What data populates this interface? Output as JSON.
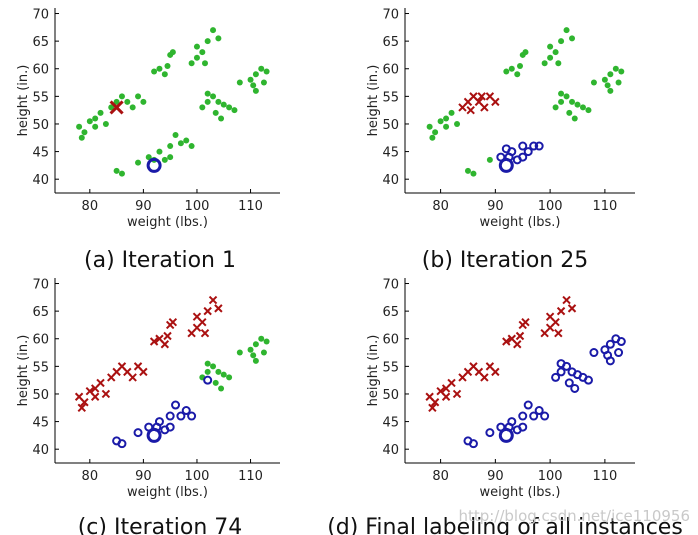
{
  "chart_data": [
    {
      "type": "scatter",
      "caption": "(a) Iteration 1",
      "xlabel": "weight (lbs.)",
      "ylabel": "height (in.)",
      "xlim": [
        73.5,
        115.5
      ],
      "ylim": [
        37.5,
        71
      ],
      "xticks": [
        80,
        90,
        100,
        110
      ],
      "yticks": [
        40,
        45,
        50,
        55,
        60,
        65,
        70
      ],
      "series": [
        {
          "marker": "dot",
          "color": "#2fb52f",
          "points": [
            [
              78,
              49.5
            ],
            [
              78.5,
              47.5
            ],
            [
              79,
              48.5
            ],
            [
              80,
              50.5
            ],
            [
              81,
              49.5
            ],
            [
              82,
              52
            ],
            [
              83,
              50
            ],
            [
              84,
              53
            ],
            [
              85,
              54
            ],
            [
              86,
              55
            ],
            [
              87,
              54
            ],
            [
              88,
              53
            ],
            [
              89,
              55
            ],
            [
              90,
              54
            ],
            [
              81,
              51
            ],
            [
              92,
              59.5
            ],
            [
              93,
              60
            ],
            [
              94,
              59
            ],
            [
              95,
              62.5
            ],
            [
              95.5,
              63
            ],
            [
              94.5,
              60.5
            ],
            [
              99,
              61
            ],
            [
              100,
              64
            ],
            [
              101,
              63
            ],
            [
              102,
              65
            ],
            [
              100,
              62
            ],
            [
              101.5,
              61
            ],
            [
              103,
              67
            ],
            [
              104,
              65.5
            ],
            [
              101,
              53
            ],
            [
              102,
              54
            ],
            [
              103,
              55
            ],
            [
              104,
              54
            ],
            [
              105,
              53.5
            ],
            [
              106,
              53
            ],
            [
              103.5,
              52
            ],
            [
              104.5,
              51
            ],
            [
              102,
              55.5
            ],
            [
              108,
              57.5
            ],
            [
              110,
              58
            ],
            [
              111,
              59
            ],
            [
              112,
              60
            ],
            [
              111,
              56
            ],
            [
              110.5,
              57
            ],
            [
              113,
              59.5
            ],
            [
              112.5,
              57.5
            ],
            [
              107,
              52.5
            ],
            [
              89,
              43
            ],
            [
              91,
              44
            ],
            [
              93,
              45
            ],
            [
              95,
              46
            ],
            [
              96,
              48
            ],
            [
              97,
              46.5
            ],
            [
              98,
              47
            ],
            [
              99,
              46
            ],
            [
              95,
              44
            ],
            [
              94,
              43.5
            ],
            [
              85,
              41.5
            ],
            [
              86,
              41
            ],
            [
              92,
              43.5
            ]
          ]
        },
        {
          "marker": "x",
          "color": "#aa1111",
          "points": [
            [
              85,
              53
            ]
          ]
        },
        {
          "marker": "ring",
          "color": "#1a1aa8",
          "points": [
            [
              92,
              42.5
            ]
          ]
        }
      ]
    },
    {
      "type": "scatter",
      "caption": "(b) Iteration 25",
      "xlabel": "weight (lbs.)",
      "ylabel": "height (in.)",
      "xlim": [
        73.5,
        115.5
      ],
      "ylim": [
        37.5,
        71
      ],
      "xticks": [
        80,
        90,
        100,
        110
      ],
      "yticks": [
        40,
        45,
        50,
        55,
        60,
        65,
        70
      ],
      "series": [
        {
          "marker": "dot",
          "color": "#2fb52f",
          "points": [
            [
              78,
              49.5
            ],
            [
              78.5,
              47.5
            ],
            [
              79,
              48.5
            ],
            [
              80,
              50.5
            ],
            [
              81,
              49.5
            ],
            [
              82,
              52
            ],
            [
              83,
              50
            ],
            [
              81,
              51
            ],
            [
              92,
              59.5
            ],
            [
              93,
              60
            ],
            [
              94,
              59
            ],
            [
              95,
              62.5
            ],
            [
              95.5,
              63
            ],
            [
              94.5,
              60.5
            ],
            [
              99,
              61
            ],
            [
              100,
              64
            ],
            [
              101,
              63
            ],
            [
              102,
              65
            ],
            [
              100,
              62
            ],
            [
              101.5,
              61
            ],
            [
              103,
              67
            ],
            [
              104,
              65.5
            ],
            [
              101,
              53
            ],
            [
              102,
              54
            ],
            [
              103,
              55
            ],
            [
              104,
              54
            ],
            [
              105,
              53.5
            ],
            [
              106,
              53
            ],
            [
              103.5,
              52
            ],
            [
              104.5,
              51
            ],
            [
              102,
              55.5
            ],
            [
              108,
              57.5
            ],
            [
              110,
              58
            ],
            [
              111,
              59
            ],
            [
              112,
              60
            ],
            [
              111,
              56
            ],
            [
              110.5,
              57
            ],
            [
              113,
              59.5
            ],
            [
              112.5,
              57.5
            ],
            [
              107,
              52.5
            ],
            [
              85,
              41.5
            ],
            [
              86,
              41
            ],
            [
              89,
              43.5
            ]
          ]
        },
        {
          "marker": "x",
          "color": "#aa1111",
          "points": [
            [
              84,
              53
            ],
            [
              85,
              54
            ],
            [
              86,
              55
            ],
            [
              87,
              54
            ],
            [
              88,
              53
            ],
            [
              89,
              55
            ],
            [
              90,
              54
            ],
            [
              85.5,
              52.5
            ],
            [
              87.5,
              55
            ]
          ]
        },
        {
          "marker": "ring",
          "color": "#1a1aa8",
          "points": [
            [
              92,
              42.5
            ],
            [
              92.5,
              44
            ],
            [
              93,
              45
            ],
            [
              94,
              43.5
            ],
            [
              95,
              44
            ],
            [
              95,
              46
            ],
            [
              96,
              45
            ],
            [
              97,
              46
            ],
            [
              98,
              46
            ],
            [
              91,
              44
            ],
            [
              92,
              45.5
            ]
          ]
        }
      ]
    },
    {
      "type": "scatter",
      "caption": "(c) Iteration 74",
      "xlabel": "weight (lbs.)",
      "ylabel": "height (in.)",
      "xlim": [
        73.5,
        115.5
      ],
      "ylim": [
        37.5,
        71
      ],
      "xticks": [
        80,
        90,
        100,
        110
      ],
      "yticks": [
        40,
        45,
        50,
        55,
        60,
        65,
        70
      ],
      "series": [
        {
          "marker": "dot",
          "color": "#2fb52f",
          "points": [
            [
              102,
              54
            ],
            [
              103,
              55
            ],
            [
              104,
              54
            ],
            [
              105,
              53.5
            ],
            [
              106,
              53
            ],
            [
              103.5,
              52
            ],
            [
              104.5,
              51
            ],
            [
              102,
              55.5
            ],
            [
              108,
              57.5
            ],
            [
              110,
              58
            ],
            [
              111,
              59
            ],
            [
              112,
              60
            ],
            [
              111,
              56
            ],
            [
              110.5,
              57
            ],
            [
              113,
              59.5
            ],
            [
              112.5,
              57.5
            ],
            [
              101,
              53
            ]
          ]
        },
        {
          "marker": "x",
          "color": "#aa1111",
          "points": [
            [
              78,
              49.5
            ],
            [
              78.5,
              47.5
            ],
            [
              79,
              48.5
            ],
            [
              80,
              50.5
            ],
            [
              81,
              49.5
            ],
            [
              82,
              52
            ],
            [
              83,
              50
            ],
            [
              84,
              53
            ],
            [
              85,
              54
            ],
            [
              86,
              55
            ],
            [
              87,
              54
            ],
            [
              88,
              53
            ],
            [
              89,
              55
            ],
            [
              90,
              54
            ],
            [
              81,
              51
            ],
            [
              92,
              59.5
            ],
            [
              93,
              60
            ],
            [
              94,
              59
            ],
            [
              95,
              62.5
            ],
            [
              95.5,
              63
            ],
            [
              94.5,
              60.5
            ],
            [
              99,
              61
            ],
            [
              100,
              64
            ],
            [
              101,
              63
            ],
            [
              102,
              65
            ],
            [
              100,
              62
            ],
            [
              101.5,
              61
            ],
            [
              103,
              67
            ],
            [
              104,
              65.5
            ]
          ]
        },
        {
          "marker": "ring",
          "color": "#1a1aa8",
          "points": [
            [
              92,
              42.5
            ],
            [
              92.5,
              44
            ],
            [
              93,
              45
            ],
            [
              94,
              43.5
            ],
            [
              95,
              44
            ],
            [
              95,
              46
            ],
            [
              96,
              48
            ],
            [
              97,
              46
            ],
            [
              98,
              47
            ],
            [
              99,
              46
            ],
            [
              91,
              44
            ],
            [
              89,
              43
            ],
            [
              85,
              41.5
            ],
            [
              86,
              41
            ],
            [
              102,
              52.5
            ]
          ]
        }
      ]
    },
    {
      "type": "scatter",
      "caption": "(d) Final labeling of all instances",
      "xlabel": "weight (lbs.)",
      "ylabel": "height (in.)",
      "xlim": [
        73.5,
        115.5
      ],
      "ylim": [
        37.5,
        71
      ],
      "xticks": [
        80,
        90,
        100,
        110
      ],
      "yticks": [
        40,
        45,
        50,
        55,
        60,
        65,
        70
      ],
      "series": [
        {
          "marker": "x",
          "color": "#aa1111",
          "points": [
            [
              78,
              49.5
            ],
            [
              78.5,
              47.5
            ],
            [
              79,
              48.5
            ],
            [
              80,
              50.5
            ],
            [
              81,
              49.5
            ],
            [
              82,
              52
            ],
            [
              83,
              50
            ],
            [
              84,
              53
            ],
            [
              85,
              54
            ],
            [
              86,
              55
            ],
            [
              87,
              54
            ],
            [
              88,
              53
            ],
            [
              89,
              55
            ],
            [
              90,
              54
            ],
            [
              81,
              51
            ],
            [
              92,
              59.5
            ],
            [
              93,
              60
            ],
            [
              94,
              59
            ],
            [
              95,
              62.5
            ],
            [
              95.5,
              63
            ],
            [
              94.5,
              60.5
            ],
            [
              99,
              61
            ],
            [
              100,
              64
            ],
            [
              101,
              63
            ],
            [
              102,
              65
            ],
            [
              100,
              62
            ],
            [
              101.5,
              61
            ],
            [
              103,
              67
            ],
            [
              104,
              65.5
            ]
          ]
        },
        {
          "marker": "ring",
          "color": "#1a1aa8",
          "points": [
            [
              92,
              42.5
            ],
            [
              92.5,
              44
            ],
            [
              93,
              45
            ],
            [
              94,
              43.5
            ],
            [
              95,
              44
            ],
            [
              95,
              46
            ],
            [
              96,
              48
            ],
            [
              97,
              46
            ],
            [
              98,
              47
            ],
            [
              99,
              46
            ],
            [
              91,
              44
            ],
            [
              89,
              43
            ],
            [
              85,
              41.5
            ],
            [
              86,
              41
            ],
            [
              101,
              53
            ],
            [
              102,
              54
            ],
            [
              103,
              55
            ],
            [
              104,
              54
            ],
            [
              105,
              53.5
            ],
            [
              106,
              53
            ],
            [
              103.5,
              52
            ],
            [
              104.5,
              51
            ],
            [
              102,
              55.5
            ],
            [
              108,
              57.5
            ],
            [
              110,
              58
            ],
            [
              111,
              59
            ],
            [
              112,
              60
            ],
            [
              111,
              56
            ],
            [
              110.5,
              57
            ],
            [
              113,
              59.5
            ],
            [
              112.5,
              57.5
            ],
            [
              107,
              52.5
            ]
          ]
        }
      ]
    }
  ],
  "watermark": "http://blog.csdn.net/ice110956"
}
